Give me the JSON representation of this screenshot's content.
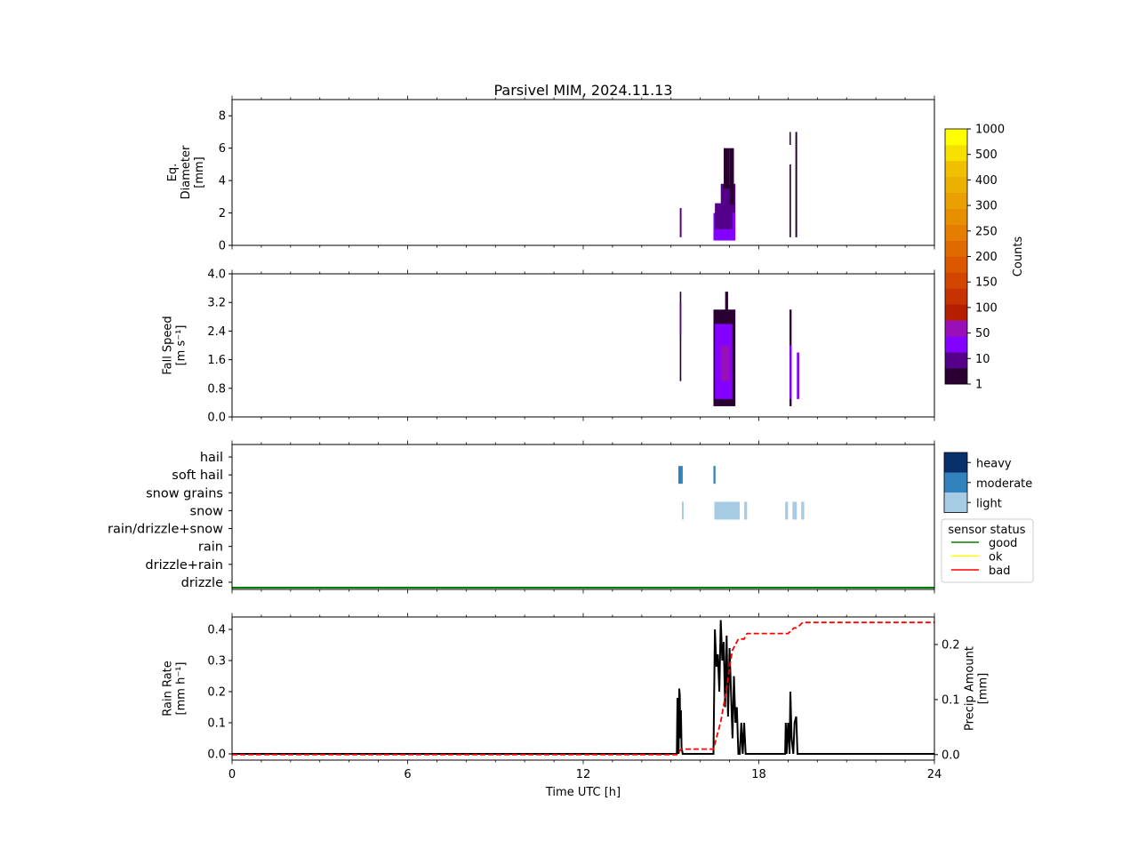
{
  "figure": {
    "title": "Parsivel MIM, 2024.11.13"
  },
  "chart_data": [
    {
      "type": "heatmap",
      "panel": "diameter",
      "ylabel": [
        "Eq.",
        "Diameter",
        "[mm]"
      ],
      "xlim": [
        0,
        24
      ],
      "ylim": [
        0,
        9
      ],
      "yticks": [
        "0",
        "2",
        "4",
        "6",
        "8"
      ],
      "ytick_values": [
        0,
        2,
        4,
        6,
        8
      ],
      "colorbar": {
        "label": "Counts",
        "tick_labels": [
          "1",
          "10",
          "50",
          "100",
          "150",
          "200",
          "250",
          "300",
          "400",
          "500",
          "1000"
        ],
        "colors": [
          "#2a0033",
          "#55008a",
          "#8400ff",
          "#9a10b8",
          "#b51f00",
          "#c73300",
          "#d24600",
          "#dc5800",
          "#e06a00",
          "#e47d00",
          "#e69000",
          "#e9a000",
          "#ecb000",
          "#f0c000",
          "#f5e000",
          "#ffff00"
        ]
      },
      "cells": [
        {
          "t0": 15.3,
          "t1": 15.36,
          "d0": 0.5,
          "d1": 2.3,
          "level": 1
        },
        {
          "t0": 16.45,
          "t1": 17.2,
          "d0": 0.3,
          "d1": 2.0,
          "level": 2
        },
        {
          "t0": 16.5,
          "t1": 17.1,
          "d0": 1.0,
          "d1": 2.6,
          "level": 1
        },
        {
          "t0": 16.7,
          "t1": 17.2,
          "d0": 2.0,
          "d1": 3.8,
          "level": 1
        },
        {
          "t0": 16.8,
          "t1": 17.0,
          "d0": 3.5,
          "d1": 6.0,
          "level": 0
        },
        {
          "t0": 17.0,
          "t1": 17.15,
          "d0": 2.5,
          "d1": 6.0,
          "level": 0
        },
        {
          "t0": 19.05,
          "t1": 19.1,
          "d0": 0.5,
          "d1": 5.0,
          "level": 0
        },
        {
          "t0": 19.05,
          "t1": 19.08,
          "d0": 6.2,
          "d1": 7.0,
          "level": 0
        },
        {
          "t0": 19.25,
          "t1": 19.31,
          "d0": 0.5,
          "d1": 7.0,
          "level": 0
        }
      ]
    },
    {
      "type": "heatmap",
      "panel": "fall_speed",
      "ylabel": [
        "Fall Speed",
        "[m s⁻¹]"
      ],
      "xlim": [
        0,
        24
      ],
      "ylim": [
        0,
        4.0
      ],
      "yticks": [
        "0.0",
        "0.8",
        "1.6",
        "2.4",
        "3.2",
        "4.0"
      ],
      "ytick_values": [
        0,
        0.8,
        1.6,
        2.4,
        3.2,
        4.0
      ],
      "cells": [
        {
          "t0": 15.3,
          "t1": 15.35,
          "v0": 1.0,
          "v1": 3.5,
          "level": 0
        },
        {
          "t0": 15.3,
          "t1": 15.35,
          "v0": 2.3,
          "v1": 3.2,
          "level": 1
        },
        {
          "t0": 16.45,
          "t1": 17.2,
          "v0": 0.3,
          "v1": 3.0,
          "level": 0
        },
        {
          "t0": 16.5,
          "t1": 17.1,
          "v0": 0.5,
          "v1": 2.6,
          "level": 2
        },
        {
          "t0": 16.7,
          "t1": 17.0,
          "v0": 1.0,
          "v1": 2.0,
          "level": 3
        },
        {
          "t0": 16.85,
          "t1": 16.95,
          "v0": 2.6,
          "v1": 3.5,
          "level": 0
        },
        {
          "t0": 19.05,
          "t1": 19.12,
          "v0": 0.3,
          "v1": 3.0,
          "level": 0
        },
        {
          "t0": 19.05,
          "t1": 19.12,
          "v0": 0.5,
          "v1": 2.0,
          "level": 2
        },
        {
          "t0": 19.3,
          "t1": 19.38,
          "v0": 0.5,
          "v1": 1.8,
          "level": 2
        }
      ]
    },
    {
      "type": "heatmap",
      "panel": "weather_type",
      "categories": [
        "drizzle",
        "drizzle+rain",
        "rain",
        "rain/drizzle+snow",
        "snow",
        "snow grains",
        "soft hail",
        "hail"
      ],
      "intensity_legend": {
        "labels": [
          "heavy",
          "moderate",
          "light"
        ],
        "colors": [
          "#08306b",
          "#3182bd",
          "#a6cbe3"
        ]
      },
      "sensor_status_legend": {
        "title": "sensor status",
        "labels": [
          "good",
          "ok",
          "bad"
        ],
        "colors": [
          "#008000",
          "#ffff00",
          "#ff0000"
        ]
      },
      "sensor_status_series": [
        {
          "t0": 0,
          "t1": 24,
          "status": "good"
        }
      ],
      "blocks": [
        {
          "category": "soft hail",
          "t0": 15.25,
          "t1": 15.4,
          "intensity": "moderate"
        },
        {
          "category": "soft hail",
          "t0": 16.45,
          "t1": 16.52,
          "intensity": "moderate"
        },
        {
          "category": "snow",
          "t0": 15.37,
          "t1": 15.43,
          "intensity": "light"
        },
        {
          "category": "snow",
          "t0": 16.48,
          "t1": 17.35,
          "intensity": "light"
        },
        {
          "category": "snow",
          "t0": 17.5,
          "t1": 17.6,
          "intensity": "light"
        },
        {
          "category": "snow",
          "t0": 18.9,
          "t1": 19.0,
          "intensity": "light"
        },
        {
          "category": "snow",
          "t0": 19.15,
          "t1": 19.3,
          "intensity": "light"
        },
        {
          "category": "snow",
          "t0": 19.45,
          "t1": 19.55,
          "intensity": "light"
        }
      ]
    },
    {
      "type": "line",
      "panel": "rain_rate",
      "xlabel": "Time UTC [h]",
      "ylabel": [
        "Rain Rate",
        "[mm h⁻¹]"
      ],
      "y2label": [
        "Precip Amount",
        "[mm]"
      ],
      "xlim": [
        0,
        24
      ],
      "ylim": [
        -0.02,
        0.44
      ],
      "y2lim": [
        -0.01,
        0.25
      ],
      "xticks": [
        "0",
        "6",
        "12",
        "18",
        "24"
      ],
      "xtick_values": [
        0,
        6,
        12,
        18,
        24
      ],
      "yticks": [
        "0.0",
        "0.1",
        "0.2",
        "0.3",
        "0.4"
      ],
      "ytick_values": [
        0,
        0.1,
        0.2,
        0.3,
        0.4
      ],
      "y2ticks": [
        "0.0",
        "0.1",
        "0.2"
      ],
      "y2tick_values": [
        0,
        0.1,
        0.2
      ],
      "series": [
        {
          "axis": "left",
          "color": "#000000",
          "style": "solid",
          "x": [
            0,
            15.2,
            15.22,
            15.26,
            15.28,
            15.3,
            15.32,
            15.34,
            15.36,
            15.4,
            15.45,
            16.45,
            16.5,
            16.55,
            16.6,
            16.65,
            16.7,
            16.75,
            16.8,
            16.85,
            16.9,
            16.95,
            17.0,
            17.05,
            17.1,
            17.15,
            17.2,
            17.25,
            17.3,
            17.35,
            17.4,
            17.45,
            17.5,
            17.55,
            17.6,
            17.65,
            18.9,
            18.92,
            18.95,
            19.0,
            19.05,
            19.08,
            19.12,
            19.18,
            19.22,
            19.25,
            19.28,
            19.32,
            19.38,
            24
          ],
          "y": [
            0,
            0,
            0.18,
            0,
            0.21,
            0.19,
            0.05,
            0.14,
            0.02,
            0,
            0,
            0,
            0.4,
            0.28,
            0.32,
            0.2,
            0.43,
            0.3,
            0.36,
            0.15,
            0.38,
            0.12,
            0.34,
            0.2,
            0.05,
            0.25,
            0.1,
            0.15,
            0,
            0,
            0.1,
            0,
            0.1,
            0,
            0,
            0,
            0,
            0.1,
            0,
            0.1,
            0,
            0.2,
            0.05,
            0,
            0.1,
            0.11,
            0.12,
            0,
            0,
            0
          ]
        },
        {
          "axis": "right",
          "color": "#ff0000",
          "style": "dashed",
          "x": [
            0,
            15.2,
            15.35,
            16.45,
            16.55,
            16.7,
            16.8,
            16.9,
            17.0,
            17.1,
            17.2,
            17.3,
            17.5,
            17.6,
            18.5,
            19.0,
            19.2,
            19.3,
            19.5,
            24
          ],
          "y": [
            0,
            0,
            0.01,
            0.01,
            0.03,
            0.06,
            0.09,
            0.12,
            0.16,
            0.19,
            0.2,
            0.21,
            0.21,
            0.22,
            0.22,
            0.22,
            0.23,
            0.23,
            0.24,
            0.24
          ]
        }
      ]
    }
  ]
}
